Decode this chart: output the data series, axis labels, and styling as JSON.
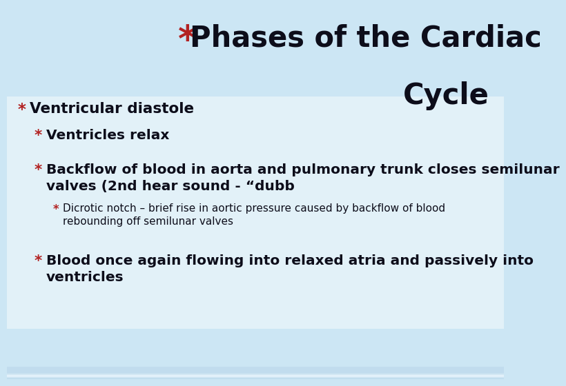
{
  "title_line1": "Phases of the Cardiac",
  "title_line2": "Cycle",
  "title_color": "#0d0d1a",
  "asterisk_color": "#b22222",
  "bullet_items": [
    {
      "level": 0,
      "text": "Ventricular diastole",
      "fontsize": 15.5,
      "bold": true,
      "italic": false
    },
    {
      "level": 1,
      "text": "Ventricles relax",
      "fontsize": 14.5,
      "bold": true,
      "italic": false
    },
    {
      "level": 1,
      "text": "Backflow of blood in aorta and pulmonary trunk closes semilunar\nvalves (2nd hear sound - “dubb",
      "fontsize": 14.5,
      "bold": true,
      "italic": false
    },
    {
      "level": 2,
      "text": "Dicrotic notch – brief rise in aortic pressure caused by backflow of blood\nrebounding off semilunar valves",
      "fontsize": 11,
      "bold": false,
      "italic": false
    },
    {
      "level": 1,
      "text": "Blood once again flowing into relaxed atria and passively into\nventricles",
      "fontsize": 14.5,
      "bold": true,
      "italic": false
    }
  ],
  "title_fontsize": 30,
  "bg_light": "#cce6f4",
  "bg_lighter": "#dff0f9",
  "content_bg": "#e8f4fb",
  "white_box_color": "#f0f8ff"
}
